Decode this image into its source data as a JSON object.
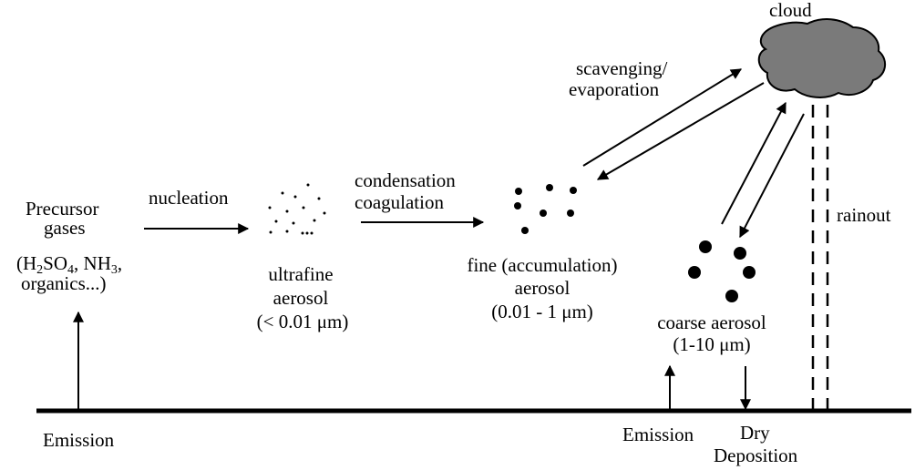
{
  "labels": {
    "precursor_line1": "Precursor",
    "precursor_line2": "gases",
    "h2so4_pre": "(H",
    "h2so4_sub1": "2",
    "h2so4_mid": "SO",
    "h2so4_sub2": "4",
    "nh3_pre": ", NH",
    "nh3_sub": "3",
    "nh3_post": ",",
    "organics": "organics...)",
    "nucleation": "nucleation",
    "ultrafine_line1": "ultrafine",
    "ultrafine_line2": "aerosol",
    "ultrafine_line3": "(< 0.01 μm)",
    "condensation": "condensation",
    "coagulation": "coagulation",
    "fine_line1": "fine (accumulation)",
    "fine_line2": "aerosol",
    "fine_line3": "(0.01 - 1 μm)",
    "scavenging": "scavenging/",
    "evaporation": "evaporation",
    "cloud": "cloud",
    "rainout": "rainout",
    "coarse_line1": "coarse aerosol",
    "coarse_line2": "(1-10 μm)",
    "emission_left": "Emission",
    "emission_right": "Emission",
    "dry": "Dry",
    "deposition": "Deposition"
  },
  "colors": {
    "line": "#000000",
    "cloud_fill": "#7a7a7a",
    "background": "#ffffff"
  }
}
